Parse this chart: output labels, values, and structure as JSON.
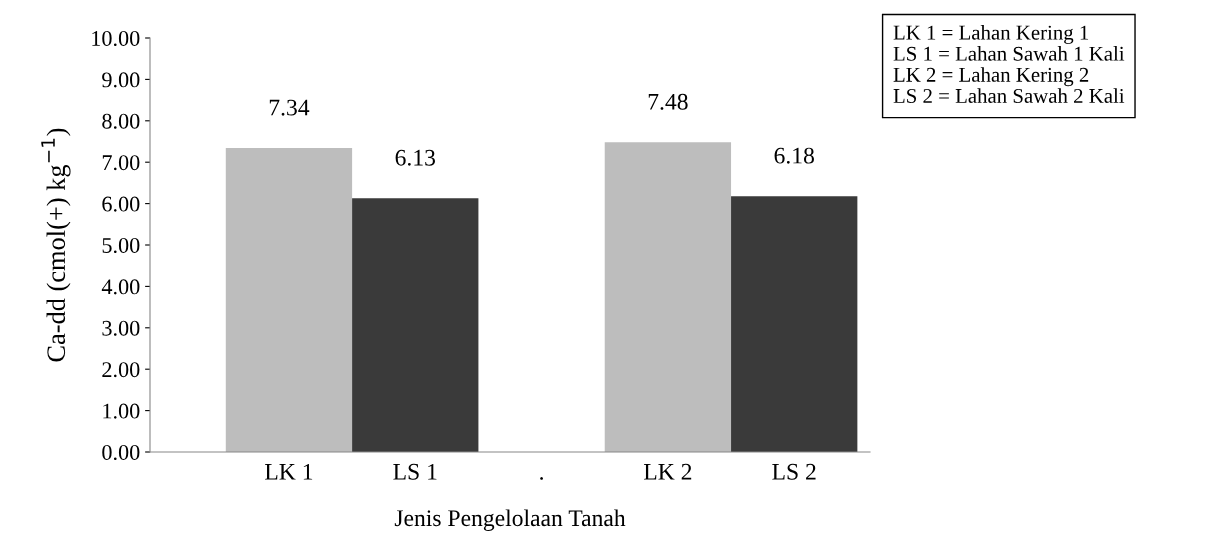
{
  "chart_data": {
    "type": "bar",
    "categories": [
      "LK 1",
      "LS 1",
      ".",
      "LK 2",
      "LS 2"
    ],
    "values": [
      7.34,
      6.13,
      null,
      7.48,
      6.18
    ],
    "colors": [
      "#bdbdbd",
      "#3a3a3a",
      "#000000",
      "#bdbdbd",
      "#3a3a3a"
    ],
    "xlabel": "Jenis Pengelolaan Tanah",
    "ylabel": "Ca-dd (cmol(+) kg$^{−1}$)",
    "ylim": [
      0,
      10
    ],
    "yticks": [
      {
        "value": 0,
        "label": "0.00"
      },
      {
        "value": 1,
        "label": "1.00"
      },
      {
        "value": 2,
        "label": "2.00"
      },
      {
        "value": 3,
        "label": "3.00"
      },
      {
        "value": 4,
        "label": "4.00"
      },
      {
        "value": 5,
        "label": "5.00"
      },
      {
        "value": 6,
        "label": "6.00"
      },
      {
        "value": 7,
        "label": "7.00"
      },
      {
        "value": 8,
        "label": "8.00"
      },
      {
        "value": 9,
        "label": "9.00"
      },
      {
        "value": 10,
        "label": "10.00"
      }
    ],
    "data_labels": true,
    "grid": false,
    "annotations": [
      "LK 1 = Lahan Kering 1",
      "LS 1 = Lahan Sawah 1 Kali",
      "LK 2 = Lahan Kering 2",
      "LS 2 = Lahan Sawah 2 Kali"
    ]
  }
}
